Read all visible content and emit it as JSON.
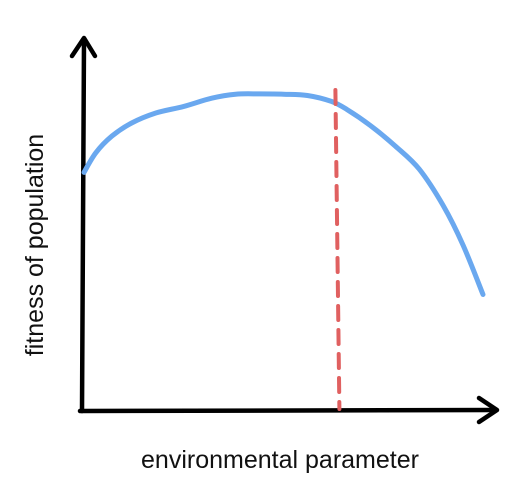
{
  "chart_data": {
    "type": "line",
    "xlabel": "environmental parameter",
    "ylabel": "fitness of population",
    "xlim": [
      0,
      1
    ],
    "ylim": [
      0,
      1
    ],
    "grid": false,
    "tick_labels": false,
    "series": [
      {
        "color": "#6aa8ef",
        "x": [
          0.0,
          0.03,
          0.07,
          0.12,
          0.18,
          0.25,
          0.32,
          0.38,
          0.44,
          0.5,
          0.56,
          0.62,
          0.66,
          0.72,
          0.78,
          0.84,
          0.9,
          0.95,
          1.0
        ],
        "y": [
          0.72,
          0.78,
          0.83,
          0.87,
          0.9,
          0.92,
          0.945,
          0.957,
          0.958,
          0.957,
          0.953,
          0.935,
          0.91,
          0.86,
          0.8,
          0.73,
          0.62,
          0.5,
          0.35
        ]
      }
    ],
    "annotations": [
      {
        "type": "vline",
        "style": "dashed",
        "x": 0.635,
        "color": "#e06060"
      }
    ],
    "colors": {
      "axis": "#000000",
      "curve": "#6aa8ef",
      "marker_line": "#e06060"
    }
  }
}
